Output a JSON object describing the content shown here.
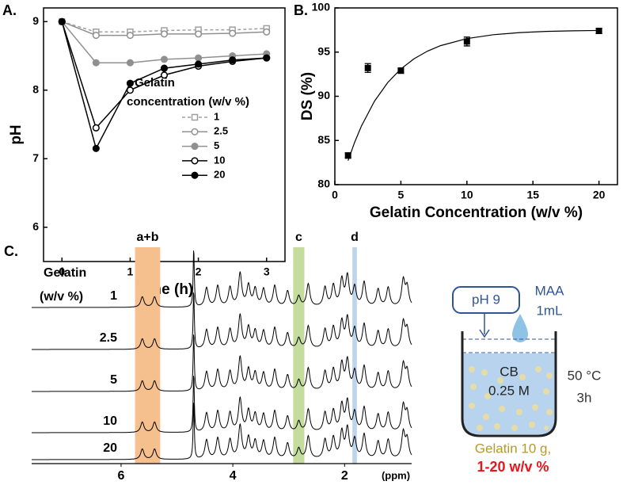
{
  "chart_data": [
    {
      "type": "line",
      "panel_label": "A.",
      "x": [
        0,
        0.5,
        1,
        1.5,
        2,
        2.5,
        3
      ],
      "xlim": [
        -0.27,
        3.27
      ],
      "xticks": [
        0,
        1,
        2,
        3
      ],
      "ylim": [
        5.5,
        9.2
      ],
      "yticks": [
        6,
        7,
        8,
        9
      ],
      "x_label": "Time (h)",
      "y_label": "pH",
      "legend_title": [
        "Gelatin",
        "concentration (w/v %)"
      ],
      "series": [
        {
          "name": "1",
          "color": "#a0a0a0",
          "dashed": true,
          "marker": "square",
          "filled": false,
          "values": [
            9.0,
            8.85,
            8.85,
            8.87,
            8.88,
            8.88,
            8.9
          ]
        },
        {
          "name": "2.5",
          "color": "#909090",
          "dashed": false,
          "marker": "circle",
          "filled": false,
          "values": [
            9.0,
            8.8,
            8.8,
            8.82,
            8.82,
            8.83,
            8.85
          ]
        },
        {
          "name": "5",
          "color": "#909090",
          "dashed": false,
          "marker": "circle",
          "filled": true,
          "values": [
            9.0,
            8.4,
            8.4,
            8.45,
            8.47,
            8.5,
            8.53
          ]
        },
        {
          "name": "10",
          "color": "#000000",
          "dashed": false,
          "marker": "circle",
          "filled": false,
          "values": [
            9.0,
            7.45,
            8.0,
            8.22,
            8.35,
            8.42,
            8.47
          ]
        },
        {
          "name": "20",
          "color": "#000000",
          "dashed": false,
          "marker": "circle",
          "filled": true,
          "values": [
            9.0,
            7.15,
            8.1,
            8.32,
            8.38,
            8.44,
            8.47
          ]
        }
      ]
    },
    {
      "type": "scatter",
      "panel_label": "B.",
      "x": [
        1,
        2.5,
        5,
        10,
        20
      ],
      "values": [
        83.3,
        93.2,
        92.9,
        96.2,
        97.4
      ],
      "errors": [
        0.3,
        0.5,
        0.3,
        0.5,
        0.3
      ],
      "color": "#000000",
      "xlim": [
        0,
        21.4
      ],
      "xticks": [
        0,
        5,
        10,
        15,
        20
      ],
      "ylim": [
        80,
        100
      ],
      "yticks": [
        80,
        85,
        90,
        95,
        100
      ],
      "x_label": "Gelatin Concentration (w/v %)",
      "y_label": "DS (%)",
      "fit": {
        "x": [
          1,
          1.5,
          2,
          3,
          4,
          5,
          6,
          7,
          8,
          10,
          12,
          14,
          16,
          18,
          20
        ],
        "values": [
          82.72,
          84.8,
          86.59,
          89.44,
          91.55,
          93.1,
          94.25,
          95.1,
          95.73,
          96.53,
          96.97,
          97.21,
          97.34,
          97.41,
          97.45
        ]
      }
    },
    {
      "type": "spectrum",
      "panel_label": "C.",
      "legend_title": [
        "Gelatin",
        "(w/v %)"
      ],
      "xlim": [
        7.6,
        0.8
      ],
      "xticks": [
        6,
        4,
        2
      ],
      "x_label": "(ppm)",
      "series": [
        {
          "name": "1"
        },
        {
          "name": "2.5"
        },
        {
          "name": "5"
        },
        {
          "name": "10"
        },
        {
          "name": "20"
        }
      ],
      "peaks_ppm": [
        5.62,
        5.4,
        4.7,
        4.47,
        4.27,
        4.05,
        3.87,
        3.72,
        3.6,
        3.45,
        3.25,
        3.02,
        2.82,
        2.65,
        2.35,
        2.2,
        2.05,
        1.95,
        1.82,
        1.65,
        1.4,
        1.22,
        0.95,
        0.88
      ],
      "peak_heights": [
        0.3,
        0.3,
        1.7,
        0.55,
        0.6,
        0.55,
        0.95,
        0.6,
        0.5,
        0.5,
        0.6,
        0.45,
        0.3,
        0.65,
        0.55,
        0.6,
        0.75,
        0.85,
        0.55,
        0.7,
        0.5,
        0.55,
        0.75,
        0.55
      ],
      "bands": [
        {
          "label": "a+b",
          "range": [
            5.75,
            5.3
          ],
          "color": "#f5c08e"
        },
        {
          "label": "c",
          "range": [
            2.92,
            2.72
          ],
          "color": "#c4dc9c"
        },
        {
          "label": "d",
          "range": [
            1.86,
            1.78
          ],
          "color": "#bcd4ec"
        }
      ]
    }
  ],
  "schematic": {
    "ph": "pH 9",
    "reagent": "MAA",
    "volume": "1mL",
    "buffer": "CB",
    "molarity": "0.25 M",
    "temperature": "50 °C",
    "time": "3h",
    "gelatin": "Gelatin 10 g,",
    "range": "1-20 w/v %"
  }
}
